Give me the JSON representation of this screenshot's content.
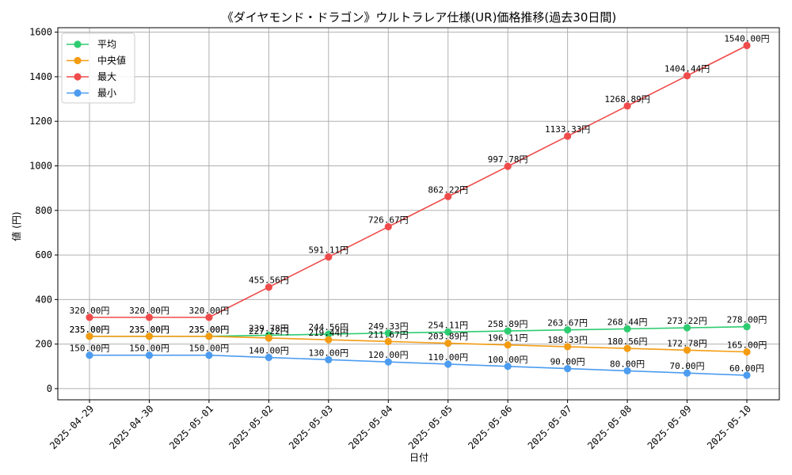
{
  "chart_data": {
    "type": "line",
    "title": "《ダイヤモンド・ドラゴン》ウルトラレア仕様(UR)価格推移(過去30日間)",
    "xlabel": "日付",
    "ylabel": "値 (円)",
    "ylim": [
      -50,
      1620
    ],
    "yticks": [
      0,
      200,
      400,
      600,
      800,
      1000,
      1200,
      1400,
      1600
    ],
    "grid": true,
    "legend_position": "top-left",
    "categories": [
      "2025-04-29",
      "2025-04-30",
      "2025-05-01",
      "2025-05-02",
      "2025-05-03",
      "2025-05-04",
      "2025-05-05",
      "2025-05-06",
      "2025-05-07",
      "2025-05-08",
      "2025-05-09",
      "2025-05-10"
    ],
    "series": [
      {
        "name": "平均",
        "color": "#2ecc71",
        "values": [
          235.0,
          235.0,
          235.0,
          239.78,
          244.56,
          249.33,
          254.11,
          258.89,
          263.67,
          268.44,
          273.22,
          278.0
        ],
        "labels": [
          "235.00円",
          "235.00円",
          "235.00円",
          "239.78円",
          "244.56円",
          "249.33円",
          "254.11円",
          "258.89円",
          "263.67円",
          "268.44円",
          "273.22円",
          "278.00円"
        ]
      },
      {
        "name": "中央値",
        "color": "#f39c12",
        "values": [
          235.0,
          235.0,
          235.0,
          227.22,
          219.44,
          211.67,
          203.89,
          196.11,
          188.33,
          180.56,
          172.78,
          165.0
        ],
        "labels": [
          "235.00円",
          "235.00円",
          "235.00円",
          "227.22円",
          "219.44円",
          "211.67円",
          "203.89円",
          "196.11円",
          "188.33円",
          "180.56円",
          "172.78円",
          "165.00円"
        ]
      },
      {
        "name": "最大",
        "color": "#ef4b4b",
        "values": [
          320.0,
          320.0,
          320.0,
          455.56,
          591.11,
          726.67,
          862.22,
          997.78,
          1133.33,
          1268.89,
          1404.44,
          1540.0
        ],
        "labels": [
          "320.00円",
          "320.00円",
          "320.00円",
          "455.56円",
          "591.11円",
          "726.67円",
          "862.22円",
          "997.78円",
          "1133.33円",
          "1268.89円",
          "1404.44円",
          "1540.00円"
        ]
      },
      {
        "name": "最小",
        "color": "#4c9cf0",
        "values": [
          150.0,
          150.0,
          150.0,
          140.0,
          130.0,
          120.0,
          110.0,
          100.0,
          90.0,
          80.0,
          70.0,
          60.0
        ],
        "labels": [
          "150.00円",
          "150.00円",
          "150.00円",
          "140.00円",
          "130.00円",
          "120.00円",
          "110.00円",
          "100.00円",
          "90.00円",
          "80.00円",
          "70.00円",
          "60.00円"
        ]
      }
    ]
  }
}
